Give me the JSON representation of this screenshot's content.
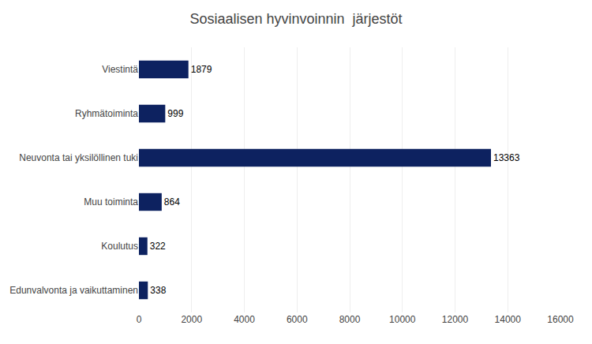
{
  "chart_data": {
    "type": "bar",
    "orientation": "horizontal",
    "title": "Sosiaalisen hyvinvoinnin  järjestöt",
    "categories": [
      "Viestintä",
      "Ryhmätoiminta",
      "Neuvonta tai yksilöllinen tuki",
      "Muu toiminta",
      "Koulutus",
      "Edunvalvonta ja vaikuttaminen"
    ],
    "values": [
      1879,
      999,
      13363,
      864,
      322,
      338
    ],
    "color": "#0D2260",
    "xlim": [
      0,
      16000
    ],
    "xticks": [
      0,
      2000,
      4000,
      6000,
      8000,
      10000,
      12000,
      14000,
      16000
    ],
    "grid": true,
    "data_labels": true
  }
}
